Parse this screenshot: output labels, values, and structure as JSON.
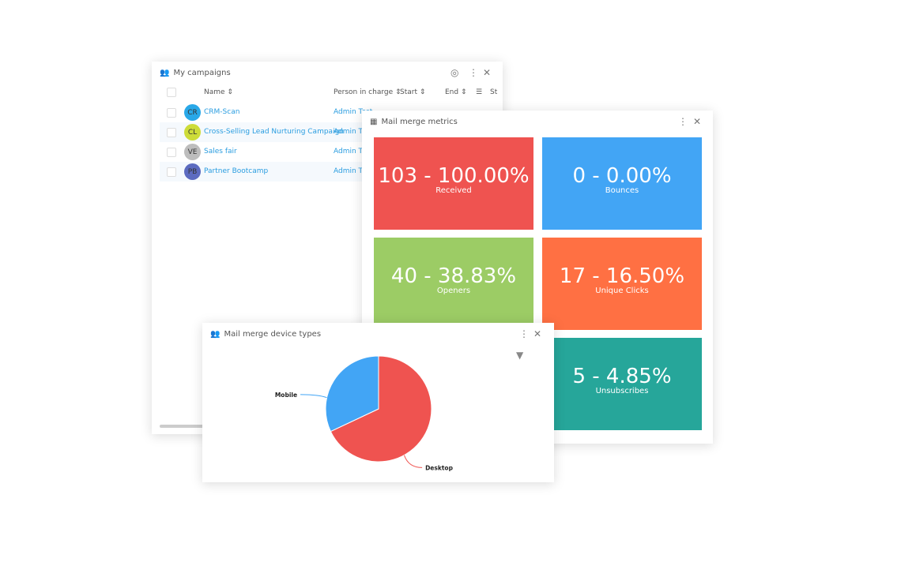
{
  "campaigns": {
    "title": "My campaigns",
    "headers": {
      "name": "Name",
      "person": "Person in charge",
      "start": "Start",
      "end": "End",
      "status": "St"
    },
    "rows": [
      {
        "initials": "CR",
        "name": "CRM-Scan",
        "person": "Admin Test",
        "color": "#29a8e8"
      },
      {
        "initials": "CL",
        "name": "Cross-Selling Lead Nurturing Campaign",
        "person": "Admin Test",
        "color": "#cddc39"
      },
      {
        "initials": "VE",
        "name": "Sales fair",
        "person": "Admin Test",
        "color": "#bdbdbd"
      },
      {
        "initials": "PB",
        "name": "Partner Bootcamp",
        "person": "Admin Test",
        "color": "#5c6bc0"
      }
    ]
  },
  "metrics": {
    "title": "Mail merge metrics",
    "tiles": [
      {
        "value": "103 - 100.00%",
        "label": "Received",
        "color": "#ef5350"
      },
      {
        "value": "0 - 0.00%",
        "label": "Bounces",
        "color": "#42a5f5"
      },
      {
        "value": "40 - 38.83%",
        "label": "Openers",
        "color": "#9ccc65"
      },
      {
        "value": "17 - 16.50%",
        "label": "Unique Clicks",
        "color": "#ff7043"
      },
      {
        "value": "",
        "label": "",
        "color": "#9ccc65"
      },
      {
        "value": "5 - 4.85%",
        "label": "Unsubscribes",
        "color": "#26a69a"
      }
    ]
  },
  "device": {
    "title": "Mail merge device types"
  },
  "chart_data": {
    "type": "pie",
    "categories": [
      "Desktop",
      "Mobile"
    ],
    "values": [
      68,
      32
    ],
    "colors": [
      "#ef5350",
      "#42a5f5"
    ]
  }
}
